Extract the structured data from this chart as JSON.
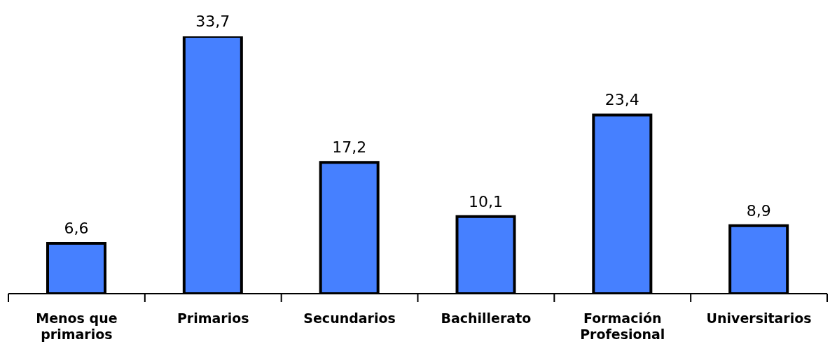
{
  "chart_data": {
    "type": "bar",
    "categories": [
      "Menos que primarios",
      "Primarios",
      "Secundarios",
      "Bachillerato",
      "Formación Profesional",
      "Universitarios"
    ],
    "values": [
      6.6,
      33.7,
      17.2,
      10.1,
      23.4,
      8.9
    ],
    "value_labels": [
      "6,6",
      "33,7",
      "17,2",
      "10,1",
      "23,4",
      "8,9"
    ],
    "color": "#4680ff",
    "grid": false,
    "legend": false
  }
}
